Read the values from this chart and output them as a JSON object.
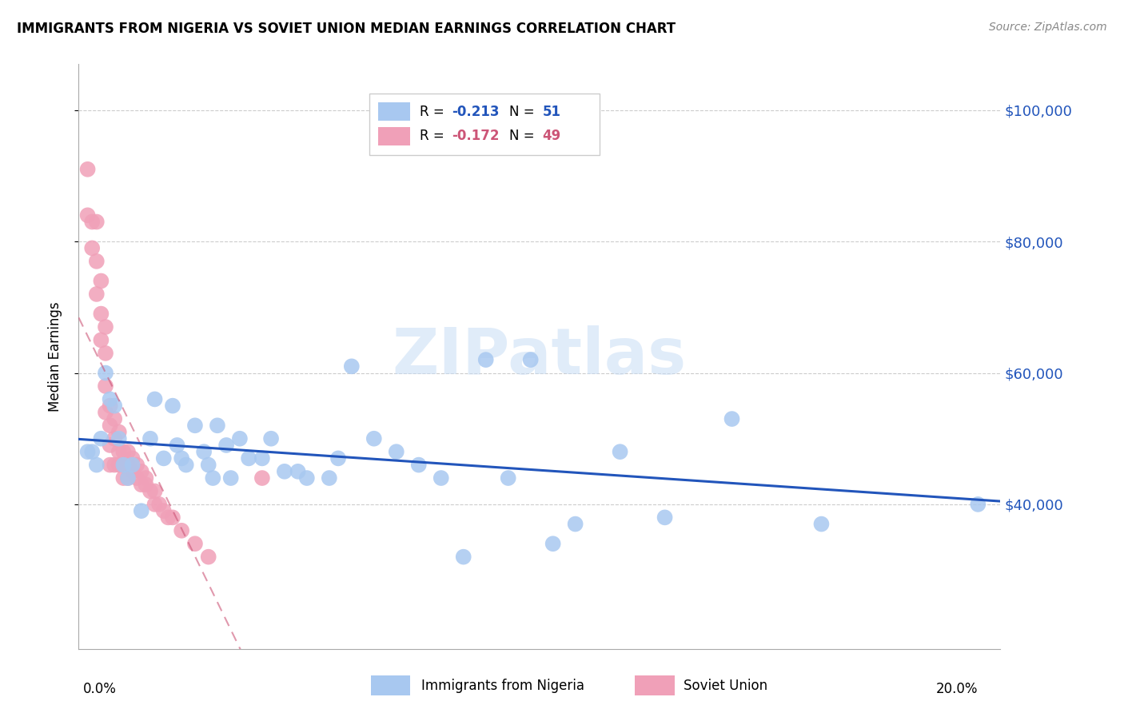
{
  "title": "IMMIGRANTS FROM NIGERIA VS SOVIET UNION MEDIAN EARNINGS CORRELATION CHART",
  "source": "Source: ZipAtlas.com",
  "ylabel": "Median Earnings",
  "ytick_labels": [
    "$100,000",
    "$80,000",
    "$60,000",
    "$40,000"
  ],
  "ytick_values": [
    100000,
    80000,
    60000,
    40000
  ],
  "ymin": 18000,
  "ymax": 107000,
  "xmin": -0.001,
  "xmax": 0.205,
  "nigeria_color": "#a8c8f0",
  "soviet_color": "#f0a0b8",
  "nigeria_line_color": "#2255bb",
  "soviet_line_color": "#cc5577",
  "nigeria_scatter_x": [
    0.001,
    0.002,
    0.003,
    0.004,
    0.005,
    0.006,
    0.007,
    0.008,
    0.009,
    0.01,
    0.011,
    0.013,
    0.015,
    0.016,
    0.018,
    0.02,
    0.021,
    0.022,
    0.023,
    0.025,
    0.027,
    0.028,
    0.029,
    0.03,
    0.032,
    0.033,
    0.035,
    0.037,
    0.04,
    0.042,
    0.045,
    0.048,
    0.05,
    0.055,
    0.057,
    0.06,
    0.065,
    0.07,
    0.075,
    0.08,
    0.085,
    0.09,
    0.095,
    0.1,
    0.105,
    0.11,
    0.12,
    0.13,
    0.145,
    0.165,
    0.2
  ],
  "nigeria_scatter_y": [
    48000,
    48000,
    46000,
    50000,
    60000,
    56000,
    55000,
    50000,
    46000,
    44000,
    46000,
    39000,
    50000,
    56000,
    47000,
    55000,
    49000,
    47000,
    46000,
    52000,
    48000,
    46000,
    44000,
    52000,
    49000,
    44000,
    50000,
    47000,
    47000,
    50000,
    45000,
    45000,
    44000,
    44000,
    47000,
    61000,
    50000,
    48000,
    46000,
    44000,
    32000,
    62000,
    44000,
    62000,
    34000,
    37000,
    48000,
    38000,
    53000,
    37000,
    40000
  ],
  "soviet_scatter_x": [
    0.001,
    0.001,
    0.002,
    0.002,
    0.003,
    0.003,
    0.003,
    0.004,
    0.004,
    0.004,
    0.005,
    0.005,
    0.005,
    0.005,
    0.006,
    0.006,
    0.006,
    0.006,
    0.007,
    0.007,
    0.007,
    0.008,
    0.008,
    0.008,
    0.009,
    0.009,
    0.009,
    0.01,
    0.01,
    0.01,
    0.011,
    0.011,
    0.012,
    0.012,
    0.013,
    0.013,
    0.014,
    0.014,
    0.015,
    0.016,
    0.016,
    0.017,
    0.018,
    0.019,
    0.02,
    0.022,
    0.025,
    0.028,
    0.04
  ],
  "soviet_scatter_y": [
    91000,
    84000,
    83000,
    79000,
    83000,
    77000,
    72000,
    74000,
    69000,
    65000,
    67000,
    63000,
    58000,
    54000,
    55000,
    52000,
    49000,
    46000,
    53000,
    50000,
    46000,
    51000,
    48000,
    46000,
    48000,
    46000,
    44000,
    48000,
    46000,
    44000,
    47000,
    45000,
    46000,
    44000,
    45000,
    43000,
    44000,
    43000,
    42000,
    42000,
    40000,
    40000,
    39000,
    38000,
    38000,
    36000,
    34000,
    32000,
    44000
  ]
}
